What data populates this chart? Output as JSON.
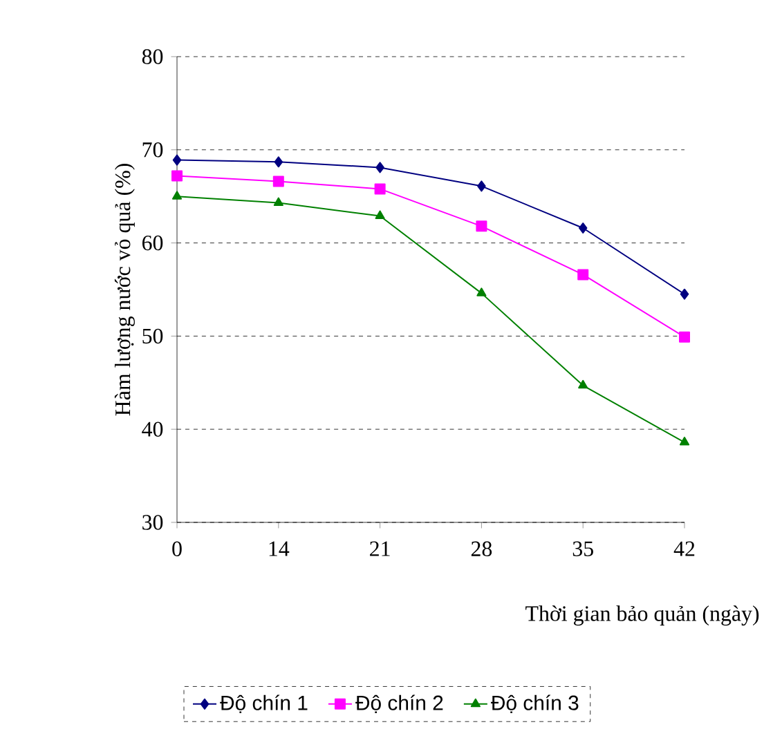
{
  "chart_data": {
    "type": "line",
    "xlabel": "Thời gian bảo quản (ngày)",
    "ylabel": "Hàm lượng nước vỏ quả (%)",
    "categories": [
      "0",
      "14",
      "21",
      "28",
      "35",
      "42"
    ],
    "series": [
      {
        "name": "Độ chín 1",
        "color": "#000080",
        "marker": "diamond",
        "values": [
          68.9,
          68.7,
          68.1,
          66.1,
          61.6,
          54.5
        ]
      },
      {
        "name": "Độ chín 2",
        "color": "#ff00ff",
        "marker": "square",
        "values": [
          67.2,
          66.6,
          65.8,
          61.8,
          56.6,
          49.9
        ]
      },
      {
        "name": "Độ chín 3",
        "color": "#008000",
        "marker": "triangle",
        "values": [
          65.0,
          64.3,
          62.9,
          54.6,
          44.7,
          38.6
        ]
      }
    ],
    "ylim": [
      30,
      80
    ],
    "yticks": [
      30,
      40,
      50,
      60,
      70,
      80
    ],
    "grid": "y",
    "legend": "bottom",
    "line_style": "solid"
  }
}
